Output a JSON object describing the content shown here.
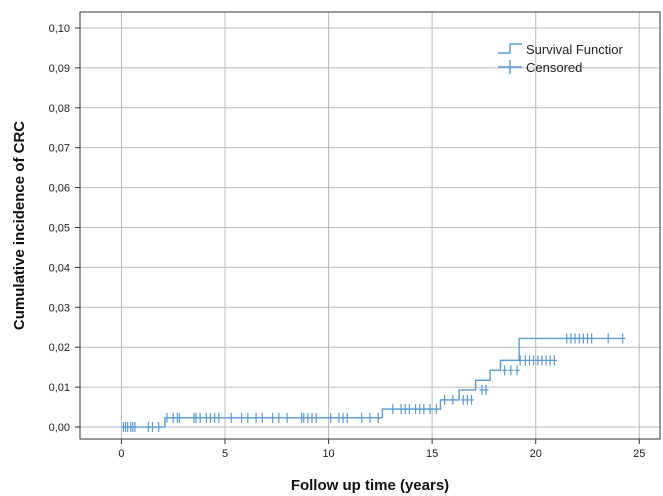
{
  "chart_data": {
    "type": "line",
    "xlabel": "Follow up time (years)",
    "ylabel": "Cumulative incidence of CRC",
    "xlim": [
      -2,
      26
    ],
    "ylim": [
      -0.003,
      0.104
    ],
    "grid": true,
    "legend_position": "top-right",
    "x_ticks": [
      "0",
      "5",
      "10",
      "15",
      "20",
      "25"
    ],
    "y_ticks": [
      "0,00",
      "0,01",
      "0,02",
      "0,03",
      "0,04",
      "0,05",
      "0,06",
      "0,07",
      "0,08",
      "0,09",
      "0,10"
    ],
    "colors": {
      "series": "#5b9bd5",
      "grid": "#bbbbbb",
      "frame": "#333333"
    },
    "series": [
      {
        "name": "Survival Functior",
        "step_x": [
          0,
          2.1,
          12.6,
          15.4,
          16.3,
          17.1,
          17.8,
          18.3,
          19.2,
          21.2,
          24.2
        ],
        "step_y": [
          0,
          0.0023,
          0.0045,
          0.0068,
          0.0093,
          0.0117,
          0.0142,
          0.0167,
          0.0222,
          0.0222,
          0.0222
        ]
      },
      {
        "name": "Censored",
        "x": [
          0.1,
          0.2,
          0.3,
          0.45,
          0.55,
          0.65,
          1.3,
          1.5,
          1.8,
          2.2,
          2.5,
          2.7,
          2.8,
          3.5,
          3.6,
          3.8,
          4.1,
          4.3,
          4.5,
          4.7,
          5.3,
          5.8,
          6.1,
          6.5,
          6.8,
          7.3,
          7.6,
          8.0,
          8.7,
          8.8,
          9.0,
          9.2,
          9.4,
          10.1,
          10.5,
          10.7,
          10.9,
          11.6,
          12.0,
          12.4,
          13.1,
          13.5,
          13.7,
          13.9,
          14.2,
          14.4,
          14.6,
          14.9,
          15.2,
          15.6,
          16.0,
          16.5,
          16.7,
          16.9,
          17.4,
          17.6,
          18.5,
          18.8,
          19.1,
          19.25,
          19.5,
          19.7,
          19.9,
          20.1,
          20.3,
          20.5,
          20.7,
          20.9,
          21.5,
          21.7,
          21.9,
          22.1,
          22.3,
          22.5,
          22.7,
          23.5,
          24.2
        ],
        "y": [
          0,
          0,
          0,
          0,
          0,
          0,
          0,
          0,
          0,
          0.0023,
          0.0023,
          0.0023,
          0.0023,
          0.0023,
          0.0023,
          0.0023,
          0.0023,
          0.0023,
          0.0023,
          0.0023,
          0.0023,
          0.0023,
          0.0023,
          0.0023,
          0.0023,
          0.0023,
          0.0023,
          0.0023,
          0.0023,
          0.0023,
          0.0023,
          0.0023,
          0.0023,
          0.0023,
          0.0023,
          0.0023,
          0.0023,
          0.0023,
          0.0023,
          0.0023,
          0.0045,
          0.0045,
          0.0045,
          0.0045,
          0.0045,
          0.0045,
          0.0045,
          0.0045,
          0.0045,
          0.0068,
          0.0068,
          0.0068,
          0.0068,
          0.0068,
          0.0093,
          0.0093,
          0.0142,
          0.0142,
          0.0142,
          0.0167,
          0.0167,
          0.0167,
          0.0167,
          0.0167,
          0.0167,
          0.0167,
          0.0167,
          0.0167,
          0.0222,
          0.0222,
          0.0222,
          0.0222,
          0.0222,
          0.0222,
          0.0222,
          0.0222,
          0.0222
        ]
      }
    ]
  }
}
